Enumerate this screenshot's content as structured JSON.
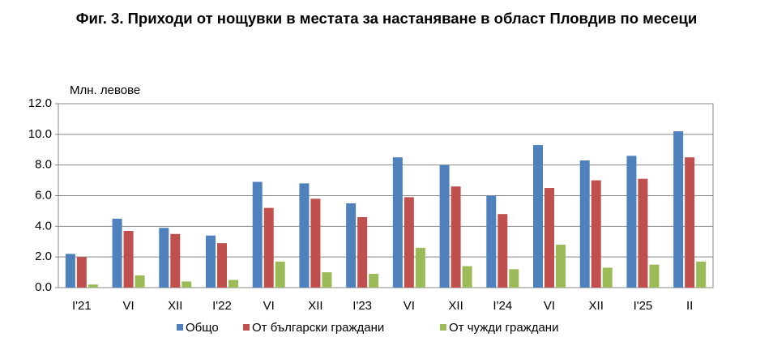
{
  "chart_data": {
    "type": "bar",
    "title": "Фиг. 3. Приходи от нощувки в местата за настаняване в област Пловдив по месеци",
    "y_label": "Млн. левове",
    "categories": [
      "I'21",
      "VI",
      "XII",
      "I'22",
      "VI",
      "XII",
      "I'23",
      "VI",
      "XII",
      "I'24",
      "VI",
      "XII",
      "I'25",
      "II"
    ],
    "series": [
      {
        "name": "Общо",
        "color": "#4f81bd",
        "values": [
          2.2,
          4.5,
          3.9,
          3.4,
          6.9,
          6.8,
          5.5,
          8.5,
          8.0,
          6.0,
          9.3,
          8.3,
          8.6,
          10.2
        ]
      },
      {
        "name": "От български граждани",
        "color": "#c0504d",
        "values": [
          2.0,
          3.7,
          3.5,
          2.9,
          5.2,
          5.8,
          4.6,
          5.9,
          6.6,
          4.8,
          6.5,
          7.0,
          7.1,
          8.5
        ]
      },
      {
        "name": "От чужди граждани",
        "color": "#9bbb59",
        "values": [
          0.2,
          0.8,
          0.4,
          0.5,
          1.7,
          1.0,
          0.9,
          2.6,
          1.4,
          1.2,
          2.8,
          1.3,
          1.5,
          1.7
        ]
      }
    ],
    "ylim": [
      0,
      12
    ],
    "yticks": [
      {
        "value": 0,
        "label": "0.0"
      },
      {
        "value": 2,
        "label": "2.0"
      },
      {
        "value": 4,
        "label": "4.0"
      },
      {
        "value": 6,
        "label": "6.0"
      },
      {
        "value": 8,
        "label": "8.0"
      },
      {
        "value": 10,
        "label": "10.0"
      },
      {
        "value": 12,
        "label": "12.0"
      }
    ],
    "grid": true,
    "legend": "bottom"
  }
}
